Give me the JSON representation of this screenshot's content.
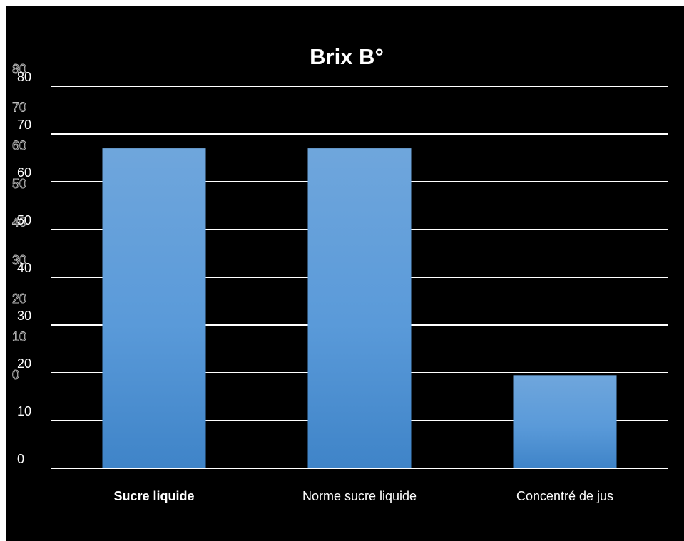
{
  "chart_data": {
    "type": "bar",
    "title": "Brix B°",
    "categories": [
      "Sucre liquide",
      "Norme sucre liquide",
      "Concentré de jus"
    ],
    "bold_categories": [
      "Sucre liquide"
    ],
    "values": [
      67,
      67,
      19.5
    ],
    "ylim": [
      0,
      80
    ],
    "yticks": [
      "0",
      "10",
      "20",
      "30",
      "40",
      "50",
      "60",
      "70",
      "80"
    ],
    "secondary_yticks": [
      "0",
      "10",
      "20",
      "30",
      "40",
      "50",
      "60",
      "70",
      "80"
    ],
    "grid": true,
    "legend": "none",
    "colors": {
      "background": "#000000",
      "bar_top": "#6fa6dc",
      "bar_bottom": "#3f84c8",
      "text": "#ffffff",
      "ghost_stroke": "#bfbfbf"
    }
  }
}
